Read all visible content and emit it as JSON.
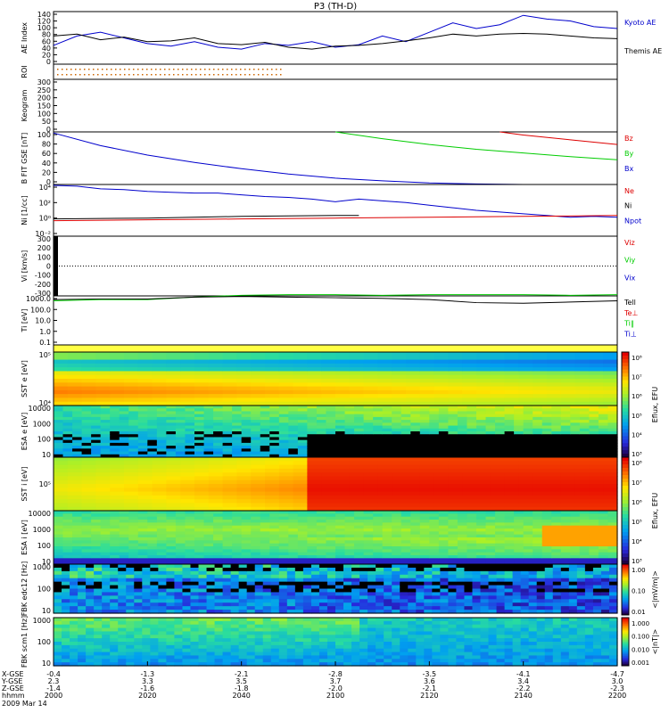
{
  "title": "P3 (TH-D)",
  "colors": {
    "kyoto": "#0000cc",
    "themis": "#000000",
    "red": "#dd0000",
    "green": "#00cc00",
    "blue": "#0000cc",
    "roi_dot": "#cc6600"
  },
  "x_axis": {
    "ticks": [
      "2000",
      "2020",
      "2040",
      "2100",
      "2120",
      "2140",
      "2200"
    ],
    "rows": [
      {
        "label": "X-GSE",
        "values": [
          "-0.4",
          "-1.3",
          "-2.1",
          "-2.8",
          "-3.5",
          "-4.1",
          "-4.7"
        ]
      },
      {
        "label": "Y-GSE",
        "values": [
          "2.3",
          "3.3",
          "3.5",
          "3.7",
          "3.6",
          "3.4",
          "3.0"
        ]
      },
      {
        "label": "Z-GSE",
        "values": [
          "-1.4",
          "-1.6",
          "-1.8",
          "-2.0",
          "-2.1",
          "-2.2",
          "-2.3"
        ]
      }
    ],
    "time_label": "hhmm",
    "date": "2009 Mar 14"
  },
  "colorbars": [
    {
      "label": "Eflux, EFU",
      "ticks": [
        "10⁸",
        "10⁷",
        "10⁶",
        "10⁵",
        "10⁴",
        "10³"
      ]
    },
    {
      "label": "Eflux, EFU",
      "ticks": [
        "10⁸",
        "10⁷",
        "10⁶",
        "10⁵",
        "10⁴",
        "10³"
      ]
    },
    {
      "label": "Eflux, EFU",
      "ticks": [
        "10⁸",
        "10⁷",
        "10⁶",
        "10⁵",
        "10⁴",
        "10³"
      ]
    },
    {
      "label": "Eflux, EFU",
      "ticks": [
        "10⁸",
        "10⁷",
        "10⁶",
        "10⁵",
        "10⁴",
        "10³"
      ]
    },
    {
      "label": "<|mV/m|>",
      "ticks": [
        "1.00",
        "0.10",
        "0.01"
      ]
    },
    {
      "label": "<|nT|>",
      "ticks": [
        "1.000",
        "0.100",
        "0.010",
        "0.001"
      ]
    }
  ],
  "chart_data": [
    {
      "type": "line",
      "id": "ae",
      "ylabel": "AE Index",
      "yticks": [
        "140",
        "120",
        "100",
        "80",
        "60",
        "40",
        "20",
        "0"
      ],
      "ylim": [
        0,
        140
      ],
      "legend": [
        "Kyoto AE",
        "Themis AE"
      ],
      "series": [
        {
          "name": "Kyoto AE",
          "color": "#0000cc",
          "x": [
            0,
            5,
            10,
            15,
            20,
            25,
            30,
            35,
            40,
            45,
            50,
            55,
            60,
            65,
            70,
            75,
            80,
            85,
            90,
            95,
            100,
            105,
            110,
            115,
            120
          ],
          "y": [
            50,
            75,
            85,
            70,
            55,
            48,
            60,
            45,
            40,
            55,
            50,
            60,
            45,
            52,
            75,
            60,
            85,
            110,
            95,
            105,
            130,
            120,
            115,
            100,
            95
          ]
        },
        {
          "name": "Themis AE",
          "color": "#000000",
          "x": [
            0,
            5,
            10,
            15,
            20,
            25,
            30,
            35,
            40,
            45,
            50,
            55,
            60,
            65,
            70,
            75,
            80,
            85,
            90,
            95,
            100,
            105,
            110,
            115,
            120
          ],
          "y": [
            75,
            80,
            65,
            72,
            60,
            62,
            70,
            55,
            52,
            58,
            45,
            40,
            48,
            50,
            55,
            62,
            70,
            80,
            75,
            80,
            82,
            80,
            75,
            70,
            68
          ]
        }
      ]
    },
    {
      "type": "scatter",
      "id": "roi",
      "ylabel": "ROI"
    },
    {
      "type": "line",
      "id": "keogram",
      "ylabel": "Keogram",
      "yticks": [
        "300",
        "250",
        "200",
        "150",
        "100",
        "50",
        "0"
      ],
      "ylim": [
        0,
        300
      ]
    },
    {
      "type": "line",
      "id": "bfield",
      "ylabel": "B FIT GSE [nT]",
      "yticks": [
        "100",
        "80",
        "60",
        "40",
        "20",
        "0"
      ],
      "ylim": [
        0,
        100
      ],
      "legend": [
        "Bz",
        "By",
        "Bx"
      ],
      "series": [
        {
          "name": "Bz",
          "color": "#dd0000",
          "x": [
            95,
            100,
            110,
            120
          ],
          "y": [
            100,
            94,
            85,
            76
          ]
        },
        {
          "name": "By",
          "color": "#00cc00",
          "x": [
            60,
            70,
            80,
            90,
            100,
            110,
            120
          ],
          "y": [
            100,
            87,
            76,
            67,
            60,
            53,
            47
          ]
        },
        {
          "name": "Bx",
          "color": "#0000cc",
          "x": [
            0,
            10,
            20,
            30,
            40,
            50,
            60,
            70,
            80,
            90,
            100,
            110,
            120
          ],
          "y": [
            98,
            74,
            56,
            42,
            30,
            20,
            12,
            7,
            3,
            1,
            0,
            0,
            0
          ]
        }
      ]
    },
    {
      "type": "line",
      "id": "density",
      "ylabel": "Ni [1/cc]",
      "yunit": "eSA",
      "yticks": [
        "10⁴",
        "10²",
        "10⁰",
        "10⁻²"
      ],
      "ylim": [
        -2,
        4
      ],
      "yscale": "log",
      "legend": [
        "Ne",
        "Ni",
        "Npot"
      ],
      "series": [
        {
          "name": "Ni",
          "color": "#0000cc",
          "x": [
            0,
            5,
            10,
            15,
            20,
            25,
            30,
            35,
            40,
            45,
            50,
            55,
            60,
            65,
            70,
            75,
            80,
            85,
            90,
            95,
            100,
            105,
            110,
            115,
            120
          ],
          "y": [
            3.9,
            3.8,
            3.5,
            3.4,
            3.2,
            3.1,
            3.0,
            3.0,
            2.8,
            2.6,
            2.5,
            2.3,
            2.0,
            2.3,
            2.1,
            1.9,
            1.6,
            1.3,
            1.0,
            0.8,
            0.6,
            0.4,
            0.2,
            0.3,
            0.2
          ]
        },
        {
          "name": "Ne",
          "color": "#dd0000",
          "x": [
            0,
            20,
            40,
            60,
            80,
            100,
            120
          ],
          "y": [
            -0.2,
            -0.1,
            0.0,
            0.1,
            0.2,
            0.3,
            0.4
          ]
        },
        {
          "name": "Npot",
          "color": "#000000",
          "x": [
            0,
            20,
            40,
            60,
            65
          ],
          "y": [
            0.0,
            0.1,
            0.3,
            0.4,
            0.4
          ]
        }
      ]
    },
    {
      "type": "line",
      "id": "velocity",
      "ylabel": "Vi [km/s]",
      "yticks": [
        "300",
        "200",
        "100",
        "0",
        "-100",
        "-200",
        "-300"
      ],
      "ylim": [
        -300,
        300
      ],
      "legend": [
        "Viz",
        "Viy",
        "Vix"
      ]
    },
    {
      "type": "line",
      "id": "temperature",
      "ylabel": "Ti [eV]",
      "yunit": "eSA",
      "yticks": [
        "1000.0",
        "100.0",
        "10.0",
        "1.0",
        "0.1"
      ],
      "ylim": [
        -1,
        3
      ],
      "yscale": "log",
      "legend": [
        "Tell",
        "Te⊥",
        "Ti‖",
        "Ti⊥"
      ],
      "series": [
        {
          "name": "Ti‖",
          "color": "#00cc00",
          "x": [
            0,
            10,
            20,
            30,
            40,
            50,
            60,
            70,
            80,
            90,
            100,
            110,
            120
          ],
          "y": [
            2.6,
            2.7,
            2.7,
            2.9,
            3.05,
            3.1,
            3.1,
            3.05,
            3.1,
            3.1,
            3.1,
            3.05,
            3.1
          ]
        },
        {
          "name": "Tell",
          "color": "#000000",
          "x": [
            0,
            10,
            20,
            30,
            40,
            50,
            60,
            70,
            80,
            90,
            100,
            110,
            120
          ],
          "y": [
            2.7,
            2.75,
            2.75,
            2.9,
            2.95,
            2.9,
            2.85,
            2.8,
            2.7,
            2.45,
            2.4,
            2.5,
            2.6
          ]
        }
      ]
    },
    {
      "type": "heatmap",
      "id": "sst_e",
      "ylabel": "SST e [eV]",
      "yticks": [
        "10⁵",
        "10⁴"
      ]
    },
    {
      "type": "heatmap",
      "id": "esa_e",
      "ylabel": "ESA e [eV]",
      "yticks": [
        "10000",
        "1000",
        "100",
        "10"
      ]
    },
    {
      "type": "heatmap",
      "id": "sst_i",
      "ylabel": "SST i [eV]",
      "yticks": [
        "10⁵"
      ]
    },
    {
      "type": "heatmap",
      "id": "esa_i",
      "ylabel": "ESA i [eV]",
      "yticks": [
        "10000",
        "1000",
        "100",
        "10"
      ]
    },
    {
      "type": "heatmap",
      "id": "fbk_e",
      "ylabel": "FBK edc12 [Hz]",
      "yticks": [
        "1000",
        "100",
        "10"
      ]
    },
    {
      "type": "heatmap",
      "id": "fbk_b",
      "ylabel": "FBK scm1 [Hz]",
      "yticks": [
        "1000",
        "100",
        "10"
      ]
    }
  ]
}
